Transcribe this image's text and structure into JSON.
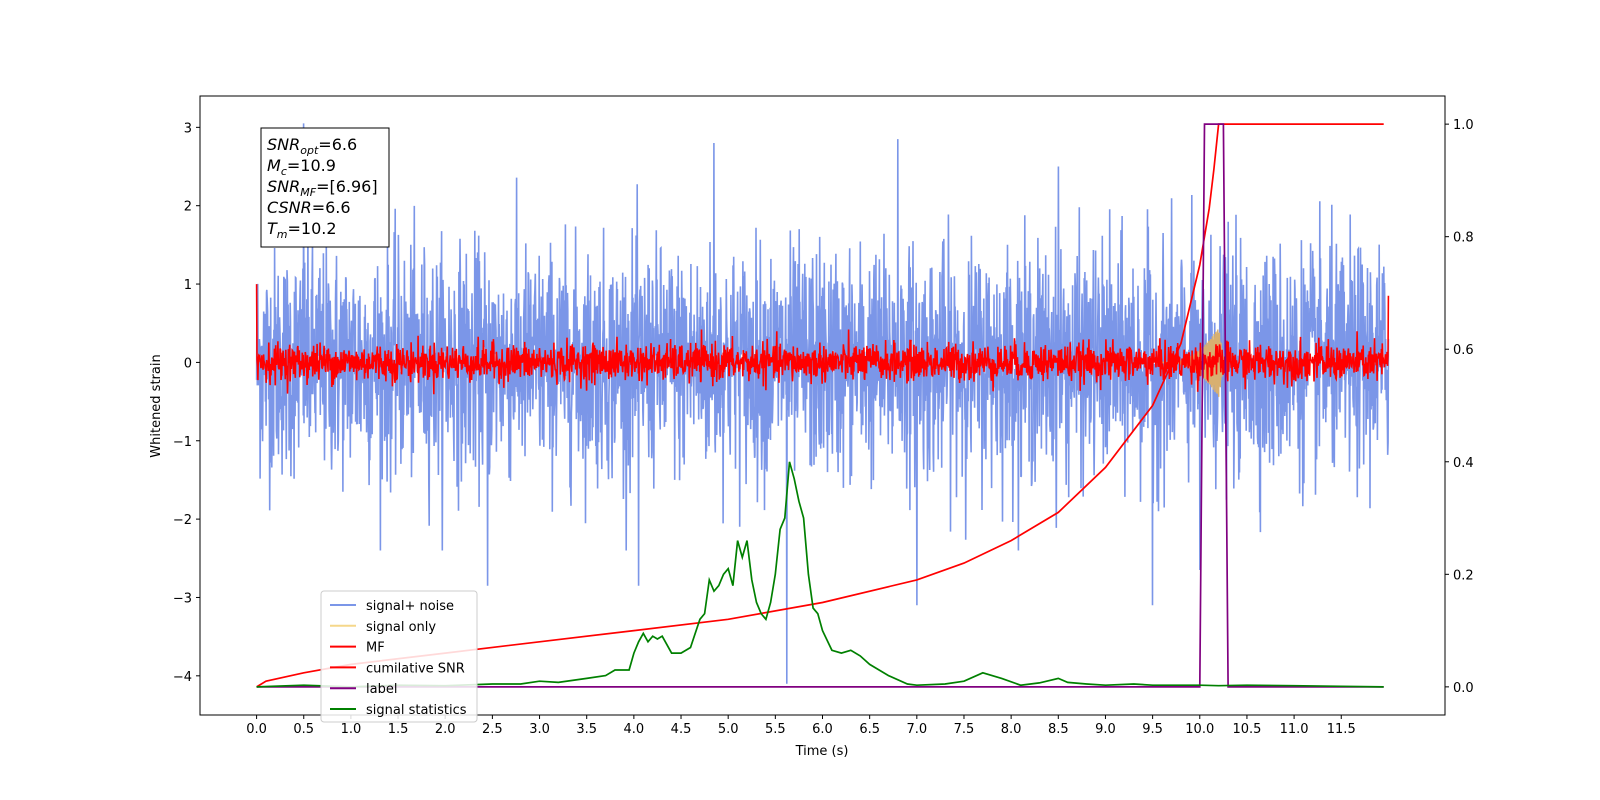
{
  "chart_data": {
    "type": "line",
    "xlabel": "Time (s)",
    "ylabel": "Whitened strain",
    "xlim": [
      -0.6,
      12.6
    ],
    "ylim": [
      -4.5,
      3.4
    ],
    "ylim_right": [
      -0.05,
      1.05
    ],
    "x_ticks": [
      0.0,
      0.5,
      1.0,
      1.5,
      2.0,
      2.5,
      3.0,
      3.5,
      4.0,
      4.5,
      5.0,
      5.5,
      6.0,
      6.5,
      7.0,
      7.5,
      8.0,
      8.5,
      9.0,
      9.5,
      10.0,
      10.5,
      11.0,
      11.5
    ],
    "x_tick_labels": [
      "0.0",
      "0.5",
      "1.0",
      "1.5",
      "2.0",
      "2.5",
      "3.0",
      "3.5",
      "4.0",
      "4.5",
      "5.0",
      "5.5",
      "6.0",
      "6.5",
      "7.0",
      "7.5",
      "8.0",
      "8.5",
      "9.0",
      "9.5",
      "10.0",
      "10.5",
      "11.0",
      "11.5"
    ],
    "y_ticks": [
      -4,
      -3,
      -2,
      -1,
      0,
      1,
      2,
      3
    ],
    "y_tick_labels": [
      "−4",
      "−3",
      "−2",
      "−1",
      "0",
      "1",
      "2",
      "3"
    ],
    "y2_ticks": [
      0.0,
      0.2,
      0.4,
      0.6,
      0.8,
      1.0
    ],
    "y2_tick_labels": [
      "0.0",
      "0.2",
      "0.4",
      "0.6",
      "0.8",
      "1.0"
    ],
    "annotation": {
      "lines": [
        {
          "main": "SNR",
          "sub": "opt",
          "rest": "=6.6"
        },
        {
          "main": "M",
          "sub": "c",
          "rest": "=10.9"
        },
        {
          "main": "SNR",
          "sub": "MF",
          "rest": "=[6.96]"
        },
        {
          "main": "CSNR",
          "sub": "",
          "rest": "=6.6"
        },
        {
          "main": "T",
          "sub": "m",
          "rest": "=10.2"
        }
      ]
    },
    "legend": {
      "placement": "lower-left",
      "entries": [
        {
          "label": "signal+ noise",
          "color": "#7b96e8"
        },
        {
          "label": "signal only",
          "color": "#f5d78a"
        },
        {
          "label": "MF",
          "color": "#ff0000"
        },
        {
          "label": "cumilative SNR",
          "color": "#ff0000"
        },
        {
          "label": "label",
          "color": "#800080"
        },
        {
          "label": "signal statistics",
          "color": "#008000"
        }
      ]
    },
    "series": [
      {
        "name": "signal+ noise",
        "axis": "left",
        "color": "#7b96e8",
        "x_range": [
          0.0,
          12.0
        ],
        "amplitude_note": "noise, typical envelope ±1.8, peaks to about ±2.9",
        "spikes": [
          {
            "x": 0.5,
            "y": 3.05
          },
          {
            "x": 2.45,
            "y": -2.85
          },
          {
            "x": 4.05,
            "y": -2.85
          },
          {
            "x": 4.85,
            "y": 2.8
          },
          {
            "x": 5.62,
            "y": -4.1
          },
          {
            "x": 6.8,
            "y": 2.85
          },
          {
            "x": 7.0,
            "y": -3.1
          },
          {
            "x": 8.5,
            "y": 2.5
          },
          {
            "x": 9.5,
            "y": -3.1
          },
          {
            "x": 10.0,
            "y": -2.65
          }
        ]
      },
      {
        "name": "signal only",
        "axis": "left",
        "color": "#d8b070",
        "chirp_peak_time": 10.2,
        "chirp_peak_amplitude": 0.45
      },
      {
        "name": "MF",
        "axis": "left",
        "color": "#ff0000",
        "x_range": [
          0.0,
          12.0
        ],
        "amplitude_note": "noise, envelope about ±0.35",
        "start_value": 1.0,
        "end_value": 0.85
      },
      {
        "name": "cumilative SNR",
        "axis": "right",
        "color": "#ff0000",
        "x": [
          0.0,
          0.1,
          0.5,
          1.0,
          2.0,
          3.0,
          4.0,
          5.0,
          6.0,
          7.0,
          7.5,
          8.0,
          8.5,
          9.0,
          9.5,
          9.8,
          10.0,
          10.1,
          10.15,
          10.2,
          10.25,
          11.0,
          11.5,
          11.95
        ],
        "y": [
          0.0,
          0.01,
          0.025,
          0.04,
          0.06,
          0.08,
          0.1,
          0.12,
          0.15,
          0.19,
          0.22,
          0.26,
          0.31,
          0.39,
          0.5,
          0.61,
          0.75,
          0.85,
          0.92,
          1.0,
          1.0,
          1.0,
          1.0,
          1.0
        ]
      },
      {
        "name": "label",
        "axis": "right",
        "color": "#800080",
        "x": [
          0.0,
          10.0,
          10.05,
          10.25,
          10.3,
          11.95
        ],
        "y": [
          0.0,
          0.0,
          1.0,
          1.0,
          0.0,
          0.0
        ]
      },
      {
        "name": "signal statistics",
        "axis": "right",
        "color": "#008000",
        "x": [
          0.0,
          0.5,
          1.0,
          1.5,
          2.0,
          2.5,
          2.8,
          3.0,
          3.2,
          3.5,
          3.7,
          3.8,
          3.95,
          4.0,
          4.05,
          4.1,
          4.15,
          4.2,
          4.25,
          4.3,
          4.4,
          4.5,
          4.6,
          4.7,
          4.75,
          4.8,
          4.85,
          4.9,
          4.95,
          5.0,
          5.05,
          5.1,
          5.15,
          5.2,
          5.25,
          5.3,
          5.35,
          5.4,
          5.45,
          5.5,
          5.55,
          5.6,
          5.65,
          5.7,
          5.75,
          5.8,
          5.85,
          5.9,
          5.95,
          6.0,
          6.1,
          6.2,
          6.3,
          6.4,
          6.5,
          6.7,
          6.9,
          7.0,
          7.3,
          7.5,
          7.7,
          7.9,
          8.1,
          8.3,
          8.5,
          8.6,
          8.8,
          9.0,
          9.3,
          9.5,
          9.8,
          10.0,
          10.2,
          10.5,
          11.0,
          11.5,
          11.95
        ],
        "y": [
          0.0,
          0.003,
          0.0,
          0.003,
          0.002,
          0.005,
          0.005,
          0.01,
          0.008,
          0.015,
          0.02,
          0.03,
          0.03,
          0.06,
          0.08,
          0.095,
          0.08,
          0.09,
          0.085,
          0.09,
          0.06,
          0.06,
          0.07,
          0.12,
          0.13,
          0.19,
          0.17,
          0.18,
          0.2,
          0.21,
          0.18,
          0.26,
          0.23,
          0.26,
          0.19,
          0.15,
          0.13,
          0.12,
          0.15,
          0.2,
          0.28,
          0.3,
          0.4,
          0.37,
          0.33,
          0.3,
          0.2,
          0.14,
          0.13,
          0.1,
          0.065,
          0.06,
          0.065,
          0.055,
          0.04,
          0.02,
          0.005,
          0.003,
          0.005,
          0.01,
          0.025,
          0.015,
          0.003,
          0.007,
          0.015,
          0.008,
          0.005,
          0.003,
          0.005,
          0.003,
          0.003,
          0.003,
          0.002,
          0.003,
          0.002,
          0.001,
          0.0
        ]
      }
    ]
  }
}
